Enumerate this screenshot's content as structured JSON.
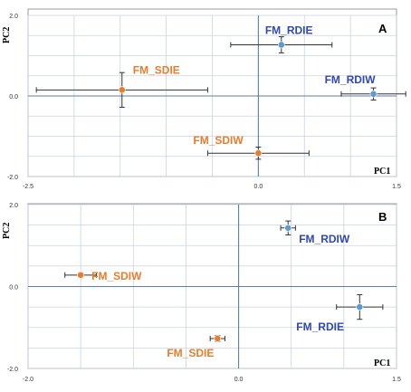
{
  "colors": {
    "orange": "#E87D2B",
    "blue": "#2E48B5",
    "point_blue": "#5B9BD5",
    "grid": "#C9D3E0",
    "axis": "#5B7FA8",
    "frame": "#9A9A9A"
  },
  "chart_data": [
    {
      "type": "scatter",
      "panel_label": "A",
      "xlabel": "PC1",
      "ylabel": "PC2",
      "xlim": [
        -2.5,
        1.5
      ],
      "ylim": [
        -2.0,
        2.0
      ],
      "x_ticks": [
        "-2.5",
        "0.0",
        "1.5"
      ],
      "y_ticks": [
        "2.0",
        "0.0",
        "-2.0"
      ],
      "grid": true,
      "points": [
        {
          "label": "FM_RDIE",
          "x": 0.25,
          "y": 1.27,
          "x_err": 0.55,
          "y_err": 0.2,
          "color": "blue"
        },
        {
          "label": "FM_RDIW",
          "x": 1.25,
          "y": 0.05,
          "x_err": 0.35,
          "y_err": 0.15,
          "color": "blue"
        },
        {
          "label": "FM_SDIE",
          "x": -1.48,
          "y": 0.15,
          "x_err": 0.93,
          "y_err": 0.43,
          "color": "orange"
        },
        {
          "label": "FM_SDIW",
          "x": 0.0,
          "y": -1.42,
          "x_err": 0.55,
          "y_err": 0.15,
          "color": "orange"
        }
      ]
    },
    {
      "type": "scatter",
      "panel_label": "B",
      "xlabel": "PC1",
      "ylabel": "PC2",
      "xlim": [
        -2.0,
        1.5
      ],
      "ylim": [
        -2.0,
        2.0
      ],
      "x_ticks": [
        "-2.0",
        "0.0",
        "1.5"
      ],
      "y_ticks": [
        "2.0",
        "0.0",
        "-2.0"
      ],
      "grid": true,
      "points": [
        {
          "label": "FM_RDIW",
          "x": 0.47,
          "y": 1.43,
          "x_err": 0.07,
          "y_err": 0.17,
          "color": "blue"
        },
        {
          "label": "FM_RDIE",
          "x": 1.15,
          "y": -0.5,
          "x_err": 0.22,
          "y_err": 0.3,
          "color": "blue"
        },
        {
          "label": "FM_SDIW",
          "x": -1.5,
          "y": 0.28,
          "x_err": 0.15,
          "y_err": 0.05,
          "color": "orange"
        },
        {
          "label": "FM_SDIE",
          "x": -0.2,
          "y": -1.27,
          "x_err": 0.07,
          "y_err": 0.07,
          "color": "orange"
        }
      ]
    }
  ]
}
